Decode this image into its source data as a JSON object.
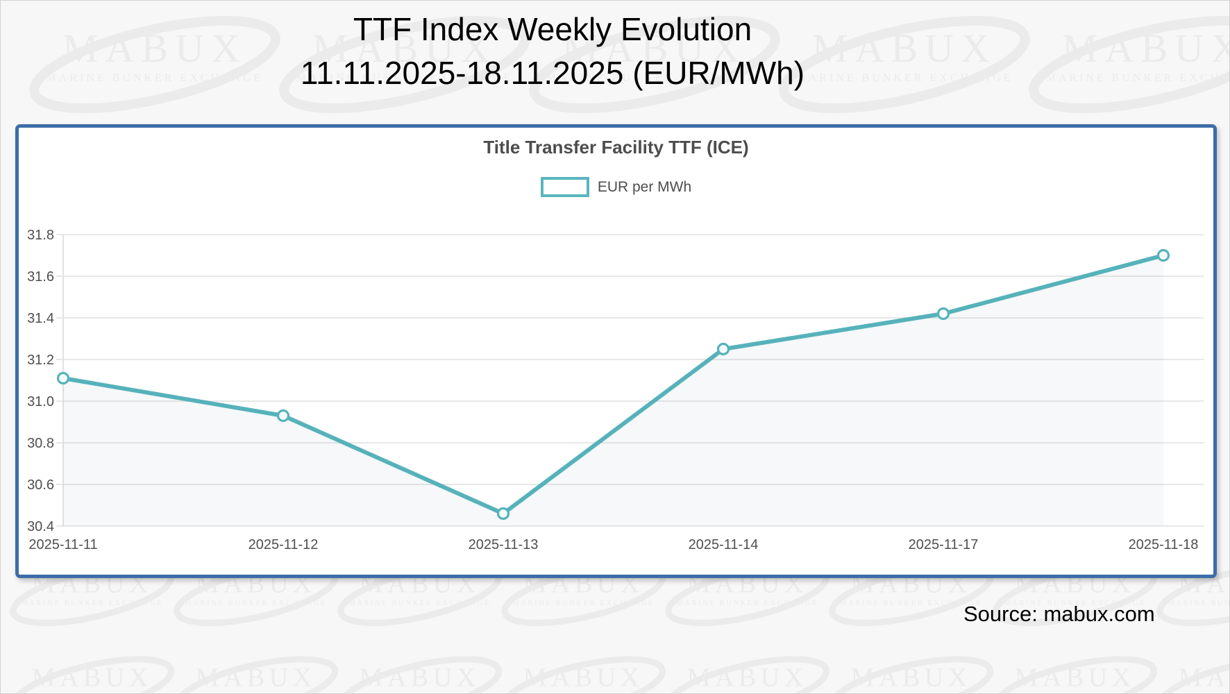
{
  "page": {
    "title_line1": "TTF Index Weekly Evolution",
    "title_line2": "11.11.2025-18.11.2025 (EUR/MWh)",
    "source": "Source: mabux.com",
    "watermark": {
      "brand": "MABUX",
      "tagline": "MARINE BUNKER EXCHANGE"
    }
  },
  "chart_data": {
    "type": "line",
    "title": "Title Transfer Facility TTF (ICE)",
    "legend": "EUR per MWh",
    "legend_position": "top",
    "categories": [
      "2025-11-11",
      "2025-11-12",
      "2025-11-13",
      "2025-11-14",
      "2025-11-17",
      "2025-11-18"
    ],
    "series": [
      {
        "name": "EUR per MWh",
        "values": [
          31.11,
          30.93,
          30.46,
          31.25,
          31.42,
          31.7
        ]
      }
    ],
    "xlabel": "",
    "ylabel": "",
    "ylim": [
      30.4,
      31.8
    ],
    "yticks": [
      "30.4",
      "30.6",
      "30.8",
      "31.0",
      "31.2",
      "31.4",
      "31.6",
      "31.8"
    ],
    "grid": true,
    "colors": {
      "line": "#56b2ba",
      "marker_fill": "#f6fbfc",
      "area_fill": "rgba(98,130,165,0.055)",
      "grid": "#e7e7e7",
      "axis_line": "#e2e2e2",
      "tick_text": "#4f4f4f",
      "chart_title_text": "#4d4d4d",
      "panel_border": "#3d6da8",
      "watermark": "#ebebeb"
    }
  }
}
